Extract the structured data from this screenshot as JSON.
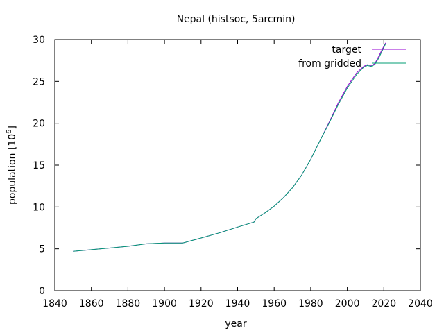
{
  "chart_data": {
    "type": "line",
    "title": "Nepal (histsoc, 5arcmin)",
    "xlabel": "year",
    "ylabel": "population [10",
    "ylabel_superscript": "6",
    "ylabel_suffix": "]",
    "xlim": [
      1840,
      2040
    ],
    "ylim": [
      0,
      30
    ],
    "xticks": [
      1840,
      1860,
      1880,
      1900,
      1920,
      1940,
      1960,
      1980,
      2000,
      2020,
      2040
    ],
    "yticks": [
      0,
      5,
      10,
      15,
      20,
      25,
      30
    ],
    "legend_position": "top-right",
    "grid": false,
    "series": [
      {
        "name": "target",
        "color": "#9400d3",
        "x": [
          1850,
          1860,
          1870,
          1880,
          1890,
          1900,
          1910,
          1920,
          1930,
          1940,
          1949,
          1950,
          1955,
          1960,
          1965,
          1970,
          1975,
          1980,
          1985,
          1990,
          1995,
          2000,
          2005,
          2009,
          2011,
          2013,
          2015,
          2017,
          2019,
          2021
        ],
        "values": [
          4.7,
          4.9,
          5.1,
          5.3,
          5.6,
          5.7,
          5.7,
          6.3,
          6.9,
          7.6,
          8.2,
          8.6,
          9.3,
          10.1,
          11.1,
          12.3,
          13.8,
          15.7,
          17.9,
          20.1,
          22.4,
          24.4,
          26.0,
          26.8,
          27.0,
          26.9,
          27.1,
          27.9,
          28.8,
          29.6
        ]
      },
      {
        "name": "from gridded",
        "color": "#009e73",
        "x": [
          1850,
          1860,
          1870,
          1880,
          1890,
          1900,
          1910,
          1920,
          1930,
          1940,
          1949,
          1950,
          1955,
          1960,
          1965,
          1970,
          1975,
          1980,
          1985,
          1990,
          1995,
          2000,
          2005,
          2009,
          2011,
          2013,
          2015,
          2017,
          2019,
          2021
        ],
        "values": [
          4.7,
          4.9,
          5.1,
          5.3,
          5.6,
          5.7,
          5.7,
          6.3,
          6.9,
          7.6,
          8.2,
          8.6,
          9.3,
          10.1,
          11.1,
          12.3,
          13.8,
          15.7,
          17.9,
          20.0,
          22.2,
          24.2,
          25.8,
          26.7,
          26.9,
          26.8,
          27.0,
          27.7,
          28.6,
          29.5
        ]
      }
    ]
  }
}
